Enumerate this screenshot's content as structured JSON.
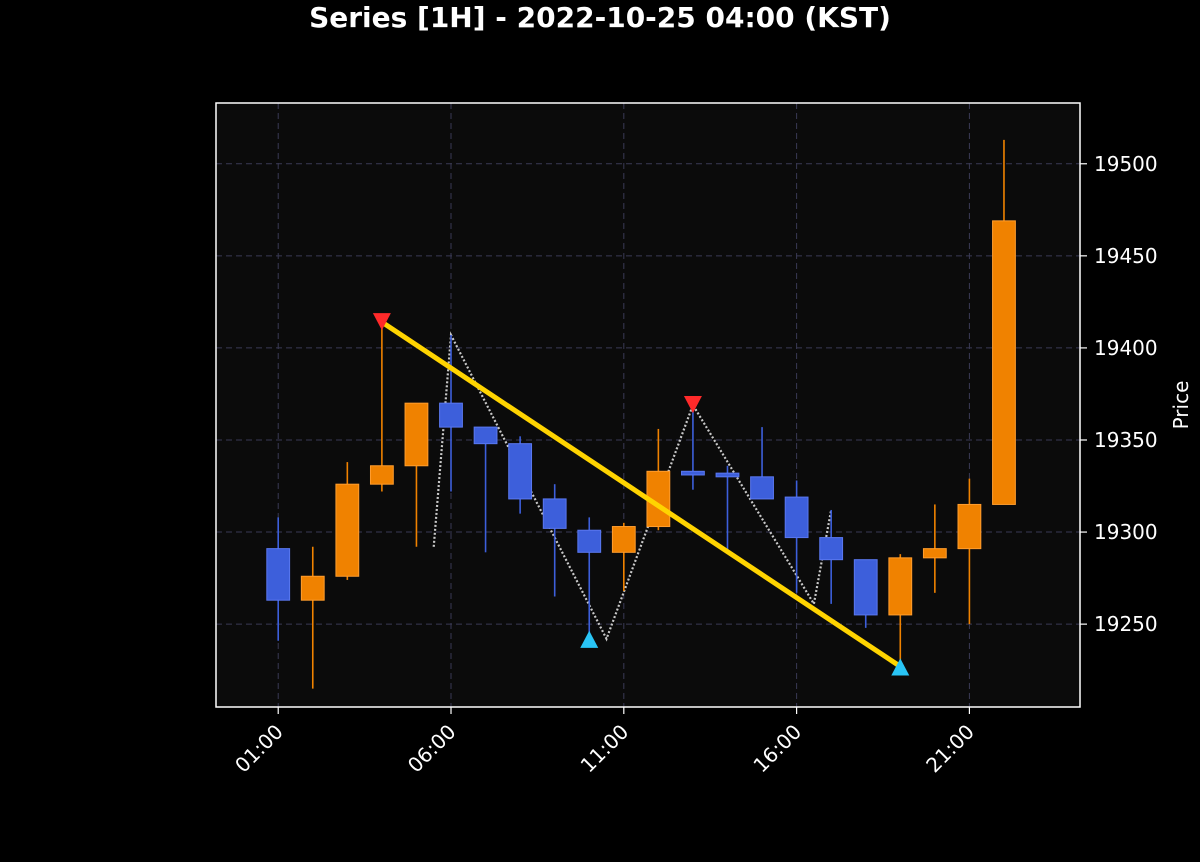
{
  "chart_data": {
    "type": "candlestick",
    "title": "Series [1H] - 2022-10-25 04:00 (KST)",
    "xlabel": "",
    "ylabel": "Price",
    "xlim": [
      -0.8,
      24.2
    ],
    "ylim": [
      19205,
      19533
    ],
    "x_ticks": [
      {
        "x": 1,
        "label": "01:00"
      },
      {
        "x": 6,
        "label": "06:00"
      },
      {
        "x": 11,
        "label": "11:00"
      },
      {
        "x": 16,
        "label": "16:00"
      },
      {
        "x": 21,
        "label": "21:00"
      }
    ],
    "y_ticks": [
      19250,
      19300,
      19350,
      19400,
      19450,
      19500
    ],
    "grid": true,
    "colors": {
      "background": "#000000",
      "plot_background": "#0b0b0b",
      "up": "#f08200",
      "down": "#3d5fdb",
      "trend_line": "#ffd400",
      "zigzag": "#c8c8c8",
      "peak_marker": "#ff2a2a",
      "trough_marker": "#29c5f6",
      "grid": "#3a3a55"
    },
    "candles": [
      {
        "time": "01:00",
        "open": 19291,
        "high": 19308,
        "low": 19241,
        "close": 19263
      },
      {
        "time": "02:00",
        "open": 19263,
        "high": 19292,
        "low": 19215,
        "close": 19276
      },
      {
        "time": "03:00",
        "open": 19276,
        "high": 19338,
        "low": 19274,
        "close": 19326
      },
      {
        "time": "04:00",
        "open": 19326,
        "high": 19414,
        "low": 19322,
        "close": 19336
      },
      {
        "time": "05:00",
        "open": 19336,
        "high": 19370,
        "low": 19292,
        "close": 19370
      },
      {
        "time": "06:00",
        "open": 19370,
        "high": 19407,
        "low": 19322,
        "close": 19357
      },
      {
        "time": "07:00",
        "open": 19357,
        "high": 19357,
        "low": 19289,
        "close": 19348
      },
      {
        "time": "08:00",
        "open": 19348,
        "high": 19352,
        "low": 19310,
        "close": 19318
      },
      {
        "time": "09:00",
        "open": 19318,
        "high": 19326,
        "low": 19265,
        "close": 19302
      },
      {
        "time": "10:00",
        "open": 19301,
        "high": 19308,
        "low": 19242,
        "close": 19289
      },
      {
        "time": "11:00",
        "open": 19289,
        "high": 19305,
        "low": 19268,
        "close": 19303
      },
      {
        "time": "12:00",
        "open": 19303,
        "high": 19356,
        "low": 19301,
        "close": 19333
      },
      {
        "time": "13:00",
        "open": 19333,
        "high": 19369,
        "low": 19323,
        "close": 19331
      },
      {
        "time": "14:00",
        "open": 19332,
        "high": 19336,
        "low": 19290,
        "close": 19330
      },
      {
        "time": "15:00",
        "open": 19330,
        "high": 19357,
        "low": 19318,
        "close": 19318
      },
      {
        "time": "16:00",
        "open": 19319,
        "high": 19328,
        "low": 19267,
        "close": 19297
      },
      {
        "time": "17:00",
        "open": 19297,
        "high": 19312,
        "low": 19261,
        "close": 19285
      },
      {
        "time": "18:00",
        "open": 19285,
        "high": 19285,
        "low": 19248,
        "close": 19255
      },
      {
        "time": "19:00",
        "open": 19255,
        "high": 19288,
        "low": 19227,
        "close": 19286
      },
      {
        "time": "20:00",
        "open": 19286,
        "high": 19315,
        "low": 19267,
        "close": 19291
      },
      {
        "time": "21:00",
        "open": 19291,
        "high": 19329,
        "low": 19250,
        "close": 19315
      },
      {
        "time": "22:00",
        "open": 19315,
        "high": 19513,
        "low": 19315,
        "close": 19469
      }
    ],
    "trend_line": [
      {
        "x": 4,
        "y": 19414
      },
      {
        "x": 19,
        "y": 19227
      }
    ],
    "zigzag": [
      {
        "x": 5.5,
        "y": 19292
      },
      {
        "x": 6,
        "y": 19407
      },
      {
        "x": 10.5,
        "y": 19242
      },
      {
        "x": 13,
        "y": 19369
      },
      {
        "x": 16.5,
        "y": 19261
      },
      {
        "x": 17,
        "y": 19312
      }
    ],
    "peaks": [
      {
        "x": 4,
        "y": 19414
      },
      {
        "x": 13,
        "y": 19369
      }
    ],
    "troughs": [
      {
        "x": 10,
        "y": 19242
      },
      {
        "x": 19,
        "y": 19227
      }
    ]
  }
}
